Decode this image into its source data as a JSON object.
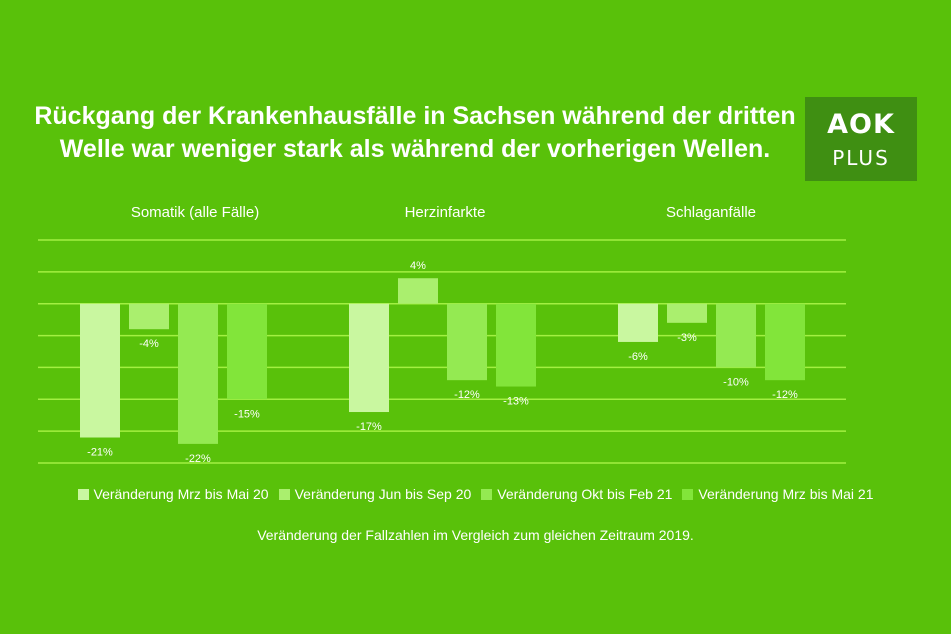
{
  "logo": {
    "line1": "AOK",
    "line2": "PLUS"
  },
  "colors": {
    "background": "#59c10a",
    "grid": "#a3f042",
    "logo_bg": "#3f8f12",
    "series": [
      "#c9f7a0",
      "#aaef6e",
      "#94ea52",
      "#82e53a"
    ]
  },
  "chart_data": {
    "type": "bar",
    "title": [
      "Rückgang der Krankenhausfälle in Sachsen während der dritten",
      "Welle war weniger stark als während der vorherigen Wellen."
    ],
    "categories": [
      "Somatik (alle Fälle)",
      "Herzinfarkte",
      "Schlaganfälle"
    ],
    "series": [
      {
        "name": "Veränderung Mrz bis Mai 20",
        "values": [
          -21,
          -17,
          -6
        ]
      },
      {
        "name": "Veränderung Jun bis Sep 20",
        "values": [
          -4,
          4,
          -3
        ]
      },
      {
        "name": "Veränderung Okt bis Feb 21",
        "values": [
          -22,
          -12,
          -10
        ]
      },
      {
        "name": "Veränderung Mrz bis Mai 21",
        "values": [
          -15,
          -13,
          -12
        ]
      }
    ],
    "value_suffix": "%",
    "ylim": [
      -25,
      10
    ],
    "gridline_values": [
      10,
      5,
      0,
      -5,
      -10,
      -15,
      -20,
      -25
    ],
    "grid": true,
    "legend_position": "bottom",
    "footnote": "Veränderung der Fallzahlen im Vergleich zum gleichen Zeitraum 2019."
  }
}
